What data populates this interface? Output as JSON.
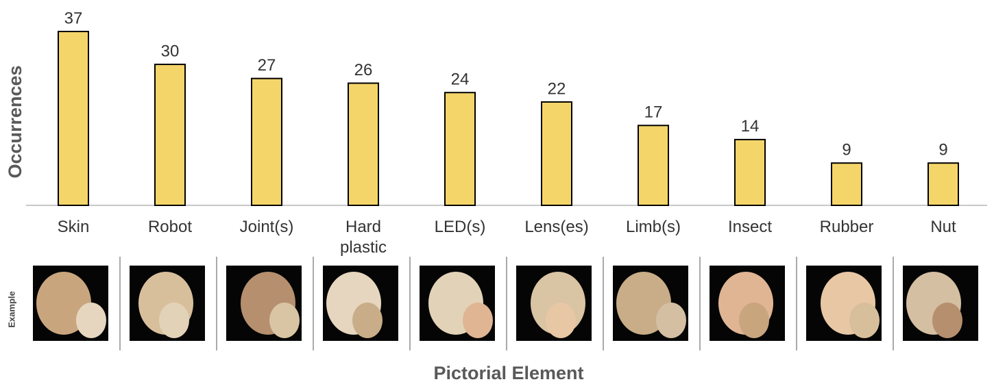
{
  "chart_data": {
    "type": "bar",
    "y_label": "Occurrences",
    "x_label": "Pictorial Element",
    "example_label": "Example",
    "categories": [
      "Skin",
      "Robot",
      "Joint(s)",
      "Hard plastic",
      "LED(s)",
      "Lens(es)",
      "Limb(s)",
      "Insect",
      "Rubber",
      "Nut"
    ],
    "values": [
      37,
      30,
      27,
      26,
      24,
      22,
      17,
      14,
      9,
      9
    ],
    "color": "#f4d56a",
    "edge_color": "#000000",
    "ylim": [
      0,
      37
    ]
  }
}
